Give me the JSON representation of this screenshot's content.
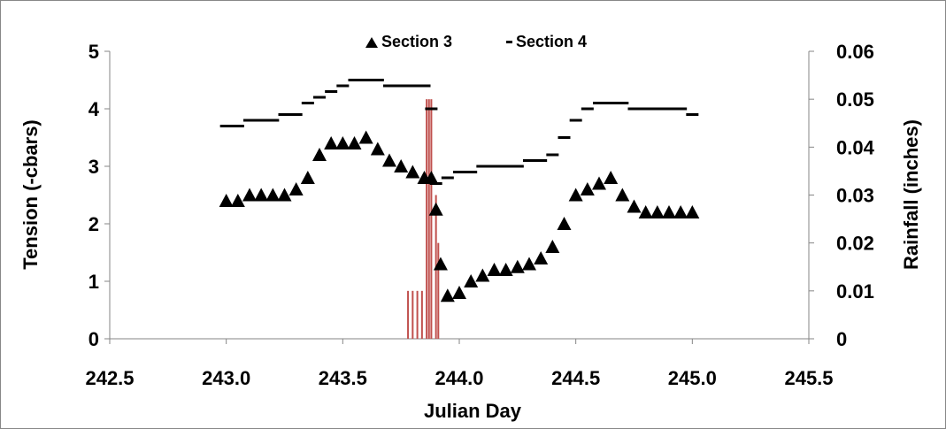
{
  "chart_data": {
    "type": "scatter",
    "title": "",
    "xlabel": "Julian Day",
    "ylabel": "Tension (-cbars)",
    "y2label": "Rainfall (inches)",
    "xlim": [
      242.5,
      245.5
    ],
    "ylim": [
      0,
      5
    ],
    "y2lim": [
      0,
      0.06
    ],
    "xticks": [
      "242.5",
      "243.0",
      "243.5",
      "244.0",
      "244.5",
      "245.0",
      "245.5"
    ],
    "yticks": [
      "0",
      "1",
      "2",
      "3",
      "4",
      "5"
    ],
    "y2ticks": [
      "0",
      "0.01",
      "0.02",
      "0.03",
      "0.04",
      "0.05",
      "0.06"
    ],
    "grid": false,
    "legend_position": "top-center",
    "legend": [
      "Section 3",
      "Section 4"
    ],
    "series": [
      {
        "name": "Section 3",
        "marker": "triangle",
        "color": "#000000",
        "x": [
          243.0,
          243.05,
          243.1,
          243.15,
          243.2,
          243.25,
          243.3,
          243.35,
          243.4,
          243.45,
          243.5,
          243.55,
          243.6,
          243.65,
          243.7,
          243.75,
          243.8,
          243.85,
          243.88,
          243.9,
          243.92,
          243.95,
          244.0,
          244.05,
          244.1,
          244.15,
          244.2,
          244.25,
          244.3,
          244.35,
          244.4,
          244.45,
          244.5,
          244.55,
          244.6,
          244.65,
          244.7,
          244.75,
          244.8,
          244.85,
          244.9,
          244.95,
          245.0
        ],
        "y": [
          2.4,
          2.4,
          2.5,
          2.5,
          2.5,
          2.5,
          2.6,
          2.8,
          3.2,
          3.4,
          3.4,
          3.4,
          3.5,
          3.3,
          3.1,
          3.0,
          2.9,
          2.8,
          2.8,
          2.25,
          1.3,
          0.75,
          0.8,
          1.0,
          1.1,
          1.2,
          1.2,
          1.25,
          1.3,
          1.4,
          1.6,
          2.0,
          2.5,
          2.6,
          2.7,
          2.8,
          2.5,
          2.3,
          2.2,
          2.2,
          2.2,
          2.2,
          2.2
        ]
      },
      {
        "name": "Section 4",
        "marker": "dash",
        "color": "#000000",
        "x": [
          243.0,
          243.05,
          243.1,
          243.15,
          243.2,
          243.25,
          243.3,
          243.35,
          243.4,
          243.45,
          243.5,
          243.55,
          243.6,
          243.65,
          243.7,
          243.75,
          243.8,
          243.85,
          243.88,
          243.9,
          243.95,
          244.0,
          244.05,
          244.1,
          244.15,
          244.2,
          244.25,
          244.3,
          244.35,
          244.4,
          244.45,
          244.5,
          244.55,
          244.6,
          244.65,
          244.7,
          244.75,
          244.8,
          244.85,
          244.9,
          244.95,
          245.0
        ],
        "y": [
          3.7,
          3.7,
          3.8,
          3.8,
          3.8,
          3.9,
          3.9,
          4.1,
          4.2,
          4.3,
          4.4,
          4.5,
          4.5,
          4.5,
          4.4,
          4.4,
          4.4,
          4.4,
          4.0,
          2.7,
          2.8,
          2.9,
          2.9,
          3.0,
          3.0,
          3.0,
          3.0,
          3.1,
          3.1,
          3.2,
          3.5,
          3.8,
          4.0,
          4.1,
          4.1,
          4.1,
          4.0,
          4.0,
          4.0,
          4.0,
          4.0,
          3.9
        ]
      },
      {
        "name": "Rainfall",
        "axis": "right",
        "type": "bar",
        "color": "#c0504d",
        "x": [
          243.78,
          243.8,
          243.82,
          243.84,
          243.86,
          243.87,
          243.88,
          243.9,
          243.91
        ],
        "y": [
          0.01,
          0.01,
          0.01,
          0.01,
          0.05,
          0.05,
          0.05,
          0.03,
          0.02
        ]
      }
    ]
  }
}
